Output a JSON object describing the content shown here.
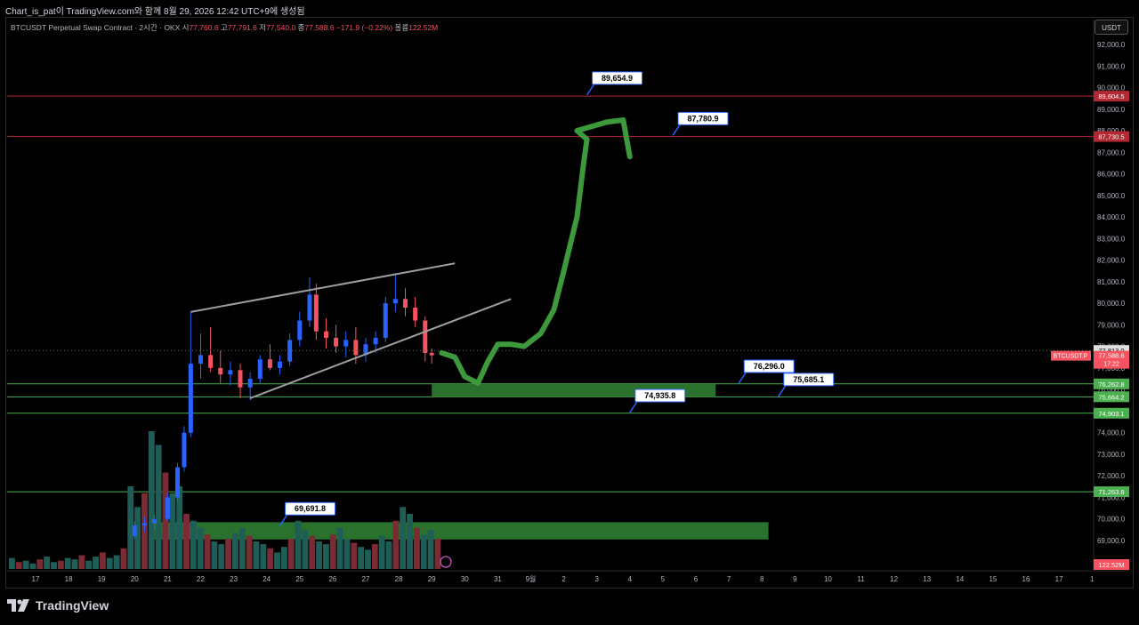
{
  "header": {
    "title": "Chart_is_pat이 TradingView.com와 함께 8월 29, 2026 12:42 UTC+9에 생성됨"
  },
  "legend": {
    "symbol": "BTCUSDT Perpetual Swap Contract · 2시간 · OKX",
    "open_label": "시",
    "open": "77,760.6",
    "high_label": "고",
    "high": "77,791.6",
    "low_label": "저",
    "low": "77,540.0",
    "close_label": "종",
    "close": "77,588.6",
    "change": "−171.9 (−0.22%)",
    "volume_label": "볼륨",
    "volume": "122.52M"
  },
  "currency_button": "USDT",
  "brand": {
    "name": "TradingView"
  },
  "colors": {
    "background": "#000000",
    "up": "#2962ff",
    "down": "#f7525f",
    "resistance_line": "#b22833",
    "support_line": "#4caf50",
    "zone": "#2e7d32",
    "arrow": "#3c9a3c",
    "wedge": "#9e9e9e"
  },
  "chart_data": {
    "type": "candlestick",
    "symbol": "BTCUSDT.P",
    "interval": "2h",
    "ylim": [
      68000,
      92500
    ],
    "y_ticks": [
      "92,000.0",
      "91,000.0",
      "90,000.0",
      "89,000.0",
      "88,000.0",
      "87,000.0",
      "86,000.0",
      "85,000.0",
      "84,000.0",
      "83,000.0",
      "82,000.0",
      "81,000.0",
      "80,000.0",
      "79,000.0",
      "78,000.0",
      "77,000.0",
      "76,000.0",
      "75,000.0",
      "74,000.0",
      "73,000.0",
      "72,000.0",
      "71,000.0",
      "70,000.0",
      "69,000.0"
    ],
    "x_ticks": [
      "17",
      "18",
      "19",
      "20",
      "21",
      "22",
      "23",
      "24",
      "25",
      "26",
      "27",
      "28",
      "29",
      "30",
      "31",
      "9월",
      "2",
      "3",
      "4",
      "5",
      "6",
      "7",
      "8",
      "9",
      "10",
      "11",
      "12",
      "13",
      "14",
      "15",
      "16",
      "17",
      "1"
    ],
    "last_price": {
      "label": "BTCUSDT.P",
      "value": "77,588.6",
      "countdown": "17:22"
    },
    "crosshair_price": "77,813.0",
    "volume_badge": "122.52M",
    "price_candles": {
      "day_start": 20,
      "comment": "approx daily OHLC path of the session (data units)",
      "values": [
        [
          20.0,
          69200,
          69900,
          69050,
          69700
        ],
        [
          20.3,
          69700,
          70100,
          69400,
          69800
        ],
        [
          20.6,
          69800,
          70200,
          69500,
          70000
        ],
        [
          21.0,
          70000,
          71200,
          69900,
          71000
        ],
        [
          21.3,
          71000,
          72600,
          70800,
          72400
        ],
        [
          21.5,
          72400,
          74300,
          72200,
          74000
        ],
        [
          21.7,
          74000,
          79600,
          73800,
          77200
        ],
        [
          22.0,
          77200,
          78600,
          76500,
          77600
        ],
        [
          22.3,
          77600,
          78900,
          76800,
          77000
        ],
        [
          22.6,
          77000,
          77800,
          76300,
          76700
        ],
        [
          22.9,
          76700,
          77300,
          76200,
          76900
        ],
        [
          23.2,
          76900,
          77200,
          75600,
          76100
        ],
        [
          23.5,
          76100,
          76800,
          75500,
          76500
        ],
        [
          23.8,
          76500,
          77600,
          76300,
          77400
        ],
        [
          24.1,
          77400,
          78100,
          76900,
          77000
        ],
        [
          24.4,
          77000,
          77600,
          76700,
          77300
        ],
        [
          24.7,
          77300,
          78600,
          77100,
          78300
        ],
        [
          25.0,
          78300,
          79600,
          78000,
          79200
        ],
        [
          25.3,
          79200,
          81200,
          78900,
          80400
        ],
        [
          25.5,
          80400,
          80900,
          78300,
          78700
        ],
        [
          25.8,
          78700,
          79300,
          77900,
          78400
        ],
        [
          26.1,
          78400,
          79000,
          77700,
          78000
        ],
        [
          26.4,
          78000,
          78700,
          77500,
          78300
        ],
        [
          26.7,
          78300,
          78900,
          77200,
          77600
        ],
        [
          27.0,
          77600,
          78400,
          77300,
          78100
        ],
        [
          27.3,
          78100,
          78700,
          77700,
          78400
        ],
        [
          27.6,
          78400,
          80300,
          78200,
          80000
        ],
        [
          27.9,
          80000,
          81400,
          79600,
          80200
        ],
        [
          28.2,
          80200,
          80700,
          79400,
          79800
        ],
        [
          28.5,
          79800,
          80300,
          78900,
          79200
        ],
        [
          28.8,
          79200,
          79400,
          77300,
          77700
        ],
        [
          29.0,
          77700,
          77900,
          77200,
          77589
        ]
      ]
    },
    "horizontal_levels": [
      {
        "value": 89604.5,
        "label": "89,604.5",
        "color": "#b22833"
      },
      {
        "value": 87730.5,
        "label": "87,730.5",
        "color": "#b22833"
      },
      {
        "value": 76262.8,
        "label": "76,262.8",
        "color": "#4caf50"
      },
      {
        "value": 75664.2,
        "label": "75,664.2",
        "color": "#4caf50"
      },
      {
        "value": 74903.1,
        "label": "74,903.1",
        "color": "#4caf50"
      },
      {
        "value": 71263.8,
        "label": "71,263.8",
        "color": "#4caf50"
      }
    ],
    "zones": [
      {
        "from_day": 29.0,
        "to_day": 37.6,
        "low": 75650,
        "high": 76250
      },
      {
        "from_day": 20.6,
        "to_day": 39.2,
        "low": 69050,
        "high": 69850
      }
    ],
    "callouts": [
      {
        "label": "89,654.9",
        "day": 33.7,
        "value": 89654.9
      },
      {
        "label": "87,780.9",
        "day": 36.3,
        "value": 87780.9
      },
      {
        "label": "76,296.0",
        "day": 38.3,
        "value": 76296.0
      },
      {
        "label": "75,685.1",
        "day": 39.5,
        "value": 75685.1
      },
      {
        "label": "74,935.8",
        "day": 35.0,
        "value": 74935.8
      },
      {
        "label": "69,691.8",
        "day": 24.4,
        "value": 69691.8
      }
    ],
    "wedge": {
      "upper": [
        [
          21.7,
          79600
        ],
        [
          29.7,
          81850
        ]
      ],
      "lower": [
        [
          23.5,
          75600
        ],
        [
          31.4,
          80200
        ]
      ]
    },
    "projection": [
      [
        29.3,
        77700
      ],
      [
        29.7,
        77500
      ],
      [
        30.0,
        76600
      ],
      [
        30.4,
        76300
      ],
      [
        30.7,
        77300
      ],
      [
        31.0,
        78100
      ],
      [
        31.4,
        78100
      ],
      [
        31.8,
        78000
      ],
      [
        32.3,
        78600
      ],
      [
        32.7,
        79700
      ],
      [
        33.0,
        81500
      ],
      [
        33.4,
        84000
      ],
      [
        33.6,
        86500
      ],
      [
        33.7,
        87600
      ],
      [
        33.4,
        88000
      ],
      [
        34.3,
        88400
      ],
      [
        34.8,
        88500
      ],
      [
        35.0,
        86800
      ]
    ],
    "volume": {
      "max": 100,
      "values": [
        8,
        5,
        6,
        4,
        7,
        9,
        5,
        6,
        8,
        7,
        10,
        6,
        9,
        12,
        8,
        10,
        15,
        60,
        45,
        55,
        100,
        90,
        70,
        55,
        60,
        40,
        35,
        30,
        25,
        20,
        18,
        22,
        26,
        30,
        24,
        20,
        18,
        15,
        12,
        16,
        22,
        35,
        28,
        24,
        20,
        18,
        25,
        30,
        22,
        19,
        16,
        14,
        18,
        24,
        20,
        35,
        45,
        40,
        30,
        25,
        28,
        22
      ]
    }
  }
}
